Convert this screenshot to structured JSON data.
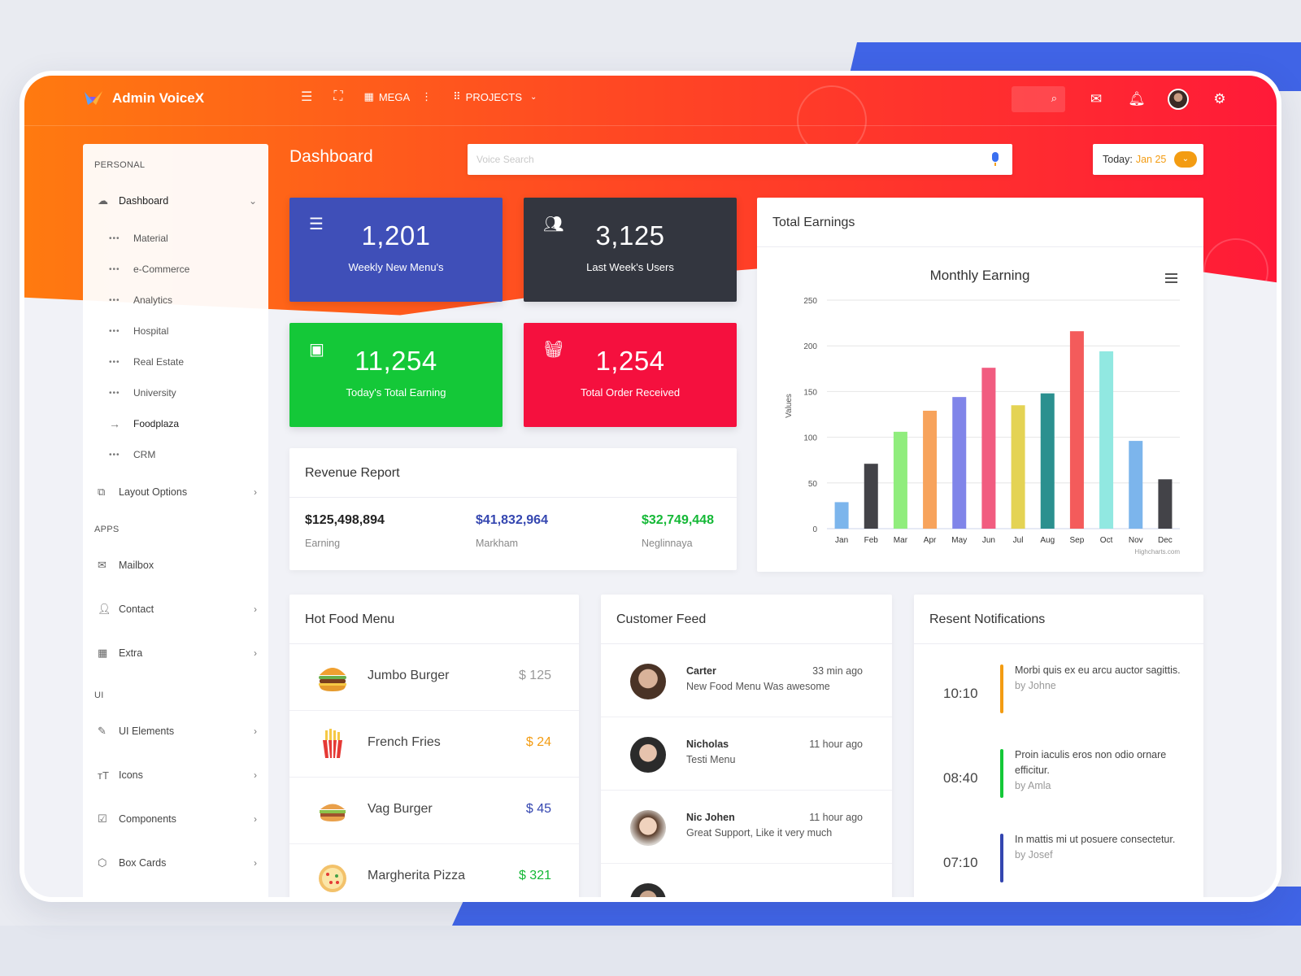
{
  "app": {
    "name": "Admin VoiceX"
  },
  "topbar": {
    "mega_label": "MEGA",
    "projects_label": "PROJECTS"
  },
  "colors": {
    "hero_start": "#ff7a10",
    "hero_end": "#ff1a38",
    "accent_blue": "#4064e6",
    "today_orange": "#f39c12"
  },
  "sidebar": {
    "personal": "PERSONAL",
    "dashboard": "Dashboard",
    "sub": [
      "Material",
      "e-Commerce",
      "Analytics",
      "Hospital",
      "Real Estate",
      "University",
      "Foodplaza",
      "CRM"
    ],
    "layout_options": "Layout Options",
    "apps": "APPS",
    "mailbox": "Mailbox",
    "contact": "Contact",
    "extra": "Extra",
    "ui": "UI",
    "ui_elements": "UI Elements",
    "icons": "Icons",
    "components": "Components",
    "box_cards": "Box Cards"
  },
  "header": {
    "title": "Dashboard",
    "search_placeholder": "Voice Search",
    "today_label": "Today:",
    "today_date": "Jan 25"
  },
  "stats": [
    {
      "value": "1,201",
      "label": "Weekly New Menu's",
      "color": "#3f4fb8",
      "icon": "menu-stack-icon"
    },
    {
      "value": "3,125",
      "label": "Last Week's Users",
      "color": "#33363f",
      "icon": "users-icon"
    },
    {
      "value": "11,254",
      "label": "Today's Total Earning",
      "color": "#14c838",
      "icon": "wallet-icon"
    },
    {
      "value": "1,254",
      "label": "Total Order Received",
      "color": "#f5103e",
      "icon": "basket-icon"
    }
  ],
  "revenue": {
    "title": "Revenue Report",
    "items": [
      {
        "value": "$125,498,894",
        "label": "Earning",
        "color": "#222222"
      },
      {
        "value": "$41,832,964",
        "label": "Markham",
        "color": "#3446b0"
      },
      {
        "value": "$32,749,448",
        "label": "Neglinnaya",
        "color": "#14b836"
      }
    ]
  },
  "earnings_card": {
    "title": "Total Earnings",
    "credit": "Highcharts.com"
  },
  "chart_data": {
    "type": "bar",
    "title": "Monthly Earning",
    "ylabel": "Values",
    "xlabel": "",
    "categories": [
      "Jan",
      "Feb",
      "Mar",
      "Apr",
      "May",
      "Jun",
      "Jul",
      "Aug",
      "Sep",
      "Oct",
      "Nov",
      "Dec"
    ],
    "values": [
      29,
      71,
      106,
      129,
      144,
      176,
      135,
      148,
      216,
      194,
      96,
      54
    ],
    "colors": [
      "#7cb5ec",
      "#434348",
      "#90ed7d",
      "#f7a35c",
      "#8085e9",
      "#f15c80",
      "#e4d354",
      "#2b908f",
      "#f45b5b",
      "#91e8e1",
      "#7cb5ec",
      "#434348"
    ],
    "ylim": [
      0,
      250
    ],
    "yticks": [
      0,
      50,
      100,
      150,
      200,
      250
    ],
    "grid": true,
    "legend": "none"
  },
  "hot_food": {
    "title": "Hot Food Menu",
    "items": [
      {
        "name": "Jumbo Burger",
        "price": "$ 125",
        "color": "#999999",
        "icon": "burger-icon"
      },
      {
        "name": "French Fries",
        "price": "$ 24",
        "color": "#f39c12",
        "icon": "fries-icon"
      },
      {
        "name": "Vag Burger",
        "price": "$ 45",
        "color": "#3446b0",
        "icon": "veg-burger-icon"
      },
      {
        "name": "Margherita Pizza",
        "price": "$ 321",
        "color": "#14b836",
        "icon": "pizza-icon"
      }
    ]
  },
  "feed": {
    "title": "Customer Feed",
    "items": [
      {
        "name": "Carter",
        "time": "33 min ago",
        "message": "New Food Menu Was awesome"
      },
      {
        "name": "Nicholas",
        "time": "11 hour ago",
        "message": "Testi Menu"
      },
      {
        "name": "Nic Johen",
        "time": "11 hour ago",
        "message": "Great Support, Like it very much"
      }
    ]
  },
  "notifications": {
    "title": "Resent Notifications",
    "items": [
      {
        "time": "10:10",
        "text": "Morbi quis ex eu arcu auctor sagittis.",
        "by": "by Johne",
        "color": "#f39c12"
      },
      {
        "time": "08:40",
        "text": "Proin iaculis eros non odio ornare efficitur.",
        "by": "by Amla",
        "color": "#14c838"
      },
      {
        "time": "07:10",
        "text": "In mattis mi ut posuere consectetur.",
        "by": "by Josef",
        "color": "#3446b0"
      }
    ]
  }
}
